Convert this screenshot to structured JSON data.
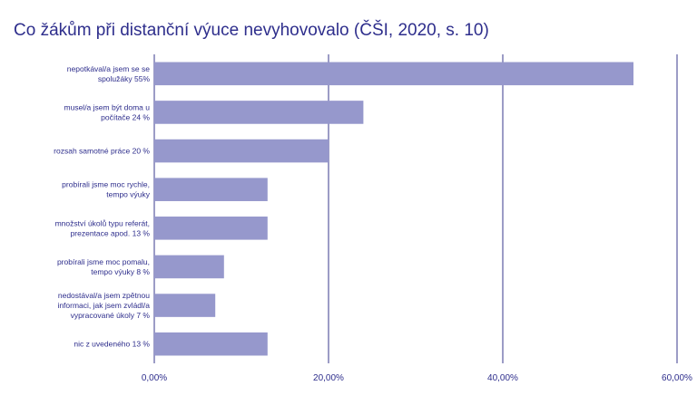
{
  "title": "Co žákům při distanční výuce nevyhovovalo (ČŠI, 2020, s. 10)",
  "chart_data": {
    "type": "bar",
    "orientation": "horizontal",
    "title": "Co žákům při distanční výuce nevyhovovalo (ČŠI, 2020, s. 10)",
    "categories": [
      [
        "nepotkával/a jsem se se",
        "spolužáky 55%"
      ],
      [
        "musel/a jsem být doma u",
        "počítače 24 %"
      ],
      [
        "rozsah samotné práce 20 %"
      ],
      [
        "probírali jsme moc rychle,",
        "tempo výuky"
      ],
      [
        "množství úkolů typu referát,",
        "prezentace apod. 13 %"
      ],
      [
        "probírali jsme moc pomalu,",
        "tempo výuky 8 %"
      ],
      [
        "nedostával/a jsem zpětnou",
        "informaci, jak jsem zvládl/a",
        "vypracované úkoly 7 %"
      ],
      [
        "nic z uvedeného 13 %"
      ]
    ],
    "values": [
      0.55,
      0.24,
      0.2,
      0.13,
      0.13,
      0.08,
      0.07,
      0.13
    ],
    "xlim": [
      0,
      0.6
    ],
    "xticks": [
      0,
      0.2,
      0.4,
      0.6
    ],
    "xtick_labels": [
      "0,00%",
      "20,00%",
      "40,00%",
      "60,00%"
    ],
    "xlabel": "",
    "ylabel": "",
    "grid": "vertical",
    "legend": "none",
    "colors": {
      "bar": "#9698cc",
      "grid": "#3a3a8c",
      "text": "#2e2e8c"
    }
  }
}
